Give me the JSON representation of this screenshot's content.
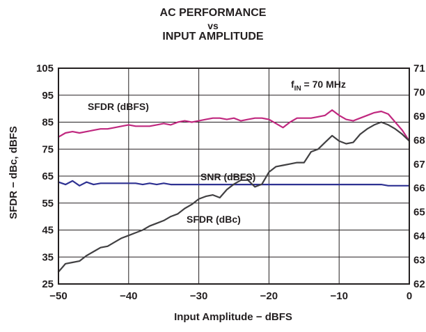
{
  "chart_data": {
    "type": "line",
    "title": [
      "AC PERFORMANCE",
      "vs",
      "INPUT AMPLITUDE"
    ],
    "xlabel": "Input Amplitude − dBFS",
    "ylabel": "SFDR − dBc, dBFS",
    "xlim": [
      -50,
      0
    ],
    "ylim": [
      25,
      105
    ],
    "y2lim": [
      62,
      71
    ],
    "x_ticks": [
      {
        "value": -50,
        "label": "−50"
      },
      {
        "value": -40,
        "label": "−40"
      },
      {
        "value": -30,
        "label": "−30"
      },
      {
        "value": -20,
        "label": "−20"
      },
      {
        "value": -10,
        "label": "−10"
      },
      {
        "value": 0,
        "label": "0"
      }
    ],
    "y_ticks": [
      {
        "value": 25,
        "label": "25"
      },
      {
        "value": 35,
        "label": "35"
      },
      {
        "value": 45,
        "label": "45"
      },
      {
        "value": 55,
        "label": "55"
      },
      {
        "value": 65,
        "label": "65"
      },
      {
        "value": 75,
        "label": "75"
      },
      {
        "value": 85,
        "label": "85"
      },
      {
        "value": 95,
        "label": "95"
      },
      {
        "value": 105,
        "label": "105"
      }
    ],
    "y2_ticks": [
      {
        "value": 62,
        "label": "62"
      },
      {
        "value": 63,
        "label": "63"
      },
      {
        "value": 64,
        "label": "64"
      },
      {
        "value": 65,
        "label": "65"
      },
      {
        "value": 66,
        "label": "66"
      },
      {
        "value": 67,
        "label": "67"
      },
      {
        "value": 68,
        "label": "68"
      },
      {
        "value": 69,
        "label": "69"
      },
      {
        "value": 70,
        "label": "70"
      },
      {
        "value": 71,
        "label": "71"
      }
    ],
    "grid": true,
    "annotations": {
      "condition_prefix": "f",
      "condition_sub": "IN",
      "condition_suffix": " = 70 MHz"
    },
    "series": [
      {
        "name": "SFDR (dBFS)",
        "color": "#c0287f",
        "x": [
          -50,
          -49,
          -48,
          -47,
          -46,
          -45,
          -44,
          -43,
          -42,
          -41,
          -40,
          -39,
          -38,
          -37,
          -36,
          -35,
          -34,
          -33,
          -32,
          -31,
          -30,
          -29,
          -28,
          -27,
          -26,
          -25,
          -24,
          -23,
          -22,
          -21,
          -20,
          -19,
          -18,
          -17,
          -16,
          -15,
          -14,
          -13,
          -12,
          -11,
          -10,
          -9,
          -8,
          -7,
          -6,
          -5,
          -4,
          -3,
          -2,
          -1,
          0
        ],
        "y": [
          79.5,
          81.0,
          81.5,
          81.0,
          81.5,
          82.0,
          82.5,
          82.5,
          83.0,
          83.5,
          84.0,
          83.5,
          83.5,
          83.5,
          84.0,
          84.5,
          84.0,
          85.0,
          85.5,
          85.0,
          85.5,
          86.0,
          86.5,
          86.5,
          86.0,
          86.5,
          85.5,
          86.0,
          86.5,
          86.5,
          86.0,
          84.5,
          83.0,
          85.0,
          86.5,
          86.5,
          86.5,
          87.0,
          87.5,
          89.5,
          87.5,
          86.0,
          85.5,
          86.5,
          87.5,
          88.5,
          89.0,
          88.0,
          85.0,
          82.0,
          78.0
        ]
      },
      {
        "name": "SNR (dBFS)",
        "color": "#2e3192",
        "axis": "right",
        "x": [
          -50,
          -49,
          -48,
          -47,
          -46,
          -45,
          -44,
          -43,
          -42,
          -41,
          -40,
          -39,
          -38,
          -37,
          -36,
          -35,
          -34,
          -33,
          -32,
          -31,
          -30,
          -29,
          -28,
          -27,
          -26,
          -25,
          -24,
          -23,
          -22,
          -21,
          -20,
          -19,
          -18,
          -17,
          -16,
          -15,
          -14,
          -13,
          -12,
          -11,
          -10,
          -9,
          -8,
          -7,
          -6,
          -5,
          -4,
          -3,
          -2,
          -1,
          0
        ],
        "y": [
          66.25,
          66.15,
          66.3,
          66.1,
          66.25,
          66.15,
          66.2,
          66.2,
          66.2,
          66.2,
          66.2,
          66.2,
          66.15,
          66.2,
          66.15,
          66.2,
          66.15,
          66.15,
          66.15,
          66.15,
          66.15,
          66.15,
          66.15,
          66.15,
          66.15,
          66.15,
          66.15,
          66.15,
          66.15,
          66.15,
          66.15,
          66.15,
          66.15,
          66.15,
          66.15,
          66.15,
          66.15,
          66.15,
          66.15,
          66.15,
          66.15,
          66.15,
          66.15,
          66.15,
          66.15,
          66.15,
          66.15,
          66.1,
          66.1,
          66.1,
          66.1
        ]
      },
      {
        "name": "SFDR (dBc)",
        "color": "#414042",
        "x": [
          -50,
          -49,
          -48,
          -47,
          -46,
          -45,
          -44,
          -43,
          -42,
          -41,
          -40,
          -39,
          -38,
          -37,
          -36,
          -35,
          -34,
          -33,
          -32,
          -31,
          -30,
          -29,
          -28,
          -27,
          -26,
          -25,
          -24,
          -23,
          -22,
          -21,
          -20,
          -19,
          -18,
          -17,
          -16,
          -15,
          -14,
          -13,
          -12,
          -11,
          -10,
          -9,
          -8,
          -7,
          -6,
          -5,
          -4,
          -3,
          -2,
          -1,
          0
        ],
        "y": [
          29.5,
          32.5,
          33.0,
          33.5,
          35.5,
          37.0,
          38.5,
          39.0,
          40.5,
          42.0,
          43.0,
          44.0,
          45.0,
          46.5,
          47.5,
          48.5,
          50.0,
          51.0,
          53.0,
          54.5,
          56.5,
          57.5,
          58.0,
          57.0,
          60.0,
          62.0,
          63.5,
          63.5,
          61.0,
          62.0,
          66.5,
          68.5,
          69.0,
          69.5,
          70.0,
          70.0,
          74.0,
          75.0,
          77.5,
          80.0,
          78.0,
          77.0,
          77.5,
          80.5,
          82.5,
          84.0,
          85.0,
          84.0,
          82.5,
          80.5,
          78.0
        ]
      }
    ]
  }
}
